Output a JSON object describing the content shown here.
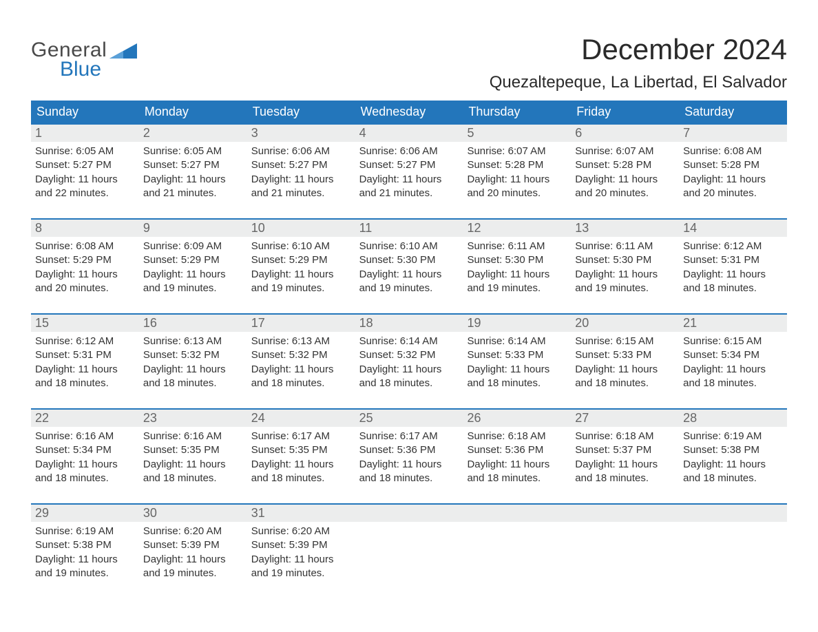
{
  "logo": {
    "text_general": "General",
    "text_blue": "Blue"
  },
  "title": "December 2024",
  "location": "Quezaltepeque, La Libertad, El Salvador",
  "colors": {
    "header_bg": "#2376bb",
    "header_text": "#ffffff",
    "day_bar_bg": "#eceded",
    "week_border": "#2376bb",
    "text": "#333333",
    "logo_blue": "#2376bb",
    "logo_gray": "#4a4a4a",
    "background": "#ffffff"
  },
  "fonts": {
    "title_size": 42,
    "location_size": 24,
    "header_size": 18,
    "daynum_size": 18,
    "body_size": 15
  },
  "day_names": [
    "Sunday",
    "Monday",
    "Tuesday",
    "Wednesday",
    "Thursday",
    "Friday",
    "Saturday"
  ],
  "weeks": [
    [
      {
        "n": "1",
        "sunrise": "Sunrise: 6:05 AM",
        "sunset": "Sunset: 5:27 PM",
        "d1": "Daylight: 11 hours",
        "d2": "and 22 minutes."
      },
      {
        "n": "2",
        "sunrise": "Sunrise: 6:05 AM",
        "sunset": "Sunset: 5:27 PM",
        "d1": "Daylight: 11 hours",
        "d2": "and 21 minutes."
      },
      {
        "n": "3",
        "sunrise": "Sunrise: 6:06 AM",
        "sunset": "Sunset: 5:27 PM",
        "d1": "Daylight: 11 hours",
        "d2": "and 21 minutes."
      },
      {
        "n": "4",
        "sunrise": "Sunrise: 6:06 AM",
        "sunset": "Sunset: 5:27 PM",
        "d1": "Daylight: 11 hours",
        "d2": "and 21 minutes."
      },
      {
        "n": "5",
        "sunrise": "Sunrise: 6:07 AM",
        "sunset": "Sunset: 5:28 PM",
        "d1": "Daylight: 11 hours",
        "d2": "and 20 minutes."
      },
      {
        "n": "6",
        "sunrise": "Sunrise: 6:07 AM",
        "sunset": "Sunset: 5:28 PM",
        "d1": "Daylight: 11 hours",
        "d2": "and 20 minutes."
      },
      {
        "n": "7",
        "sunrise": "Sunrise: 6:08 AM",
        "sunset": "Sunset: 5:28 PM",
        "d1": "Daylight: 11 hours",
        "d2": "and 20 minutes."
      }
    ],
    [
      {
        "n": "8",
        "sunrise": "Sunrise: 6:08 AM",
        "sunset": "Sunset: 5:29 PM",
        "d1": "Daylight: 11 hours",
        "d2": "and 20 minutes."
      },
      {
        "n": "9",
        "sunrise": "Sunrise: 6:09 AM",
        "sunset": "Sunset: 5:29 PM",
        "d1": "Daylight: 11 hours",
        "d2": "and 19 minutes."
      },
      {
        "n": "10",
        "sunrise": "Sunrise: 6:10 AM",
        "sunset": "Sunset: 5:29 PM",
        "d1": "Daylight: 11 hours",
        "d2": "and 19 minutes."
      },
      {
        "n": "11",
        "sunrise": "Sunrise: 6:10 AM",
        "sunset": "Sunset: 5:30 PM",
        "d1": "Daylight: 11 hours",
        "d2": "and 19 minutes."
      },
      {
        "n": "12",
        "sunrise": "Sunrise: 6:11 AM",
        "sunset": "Sunset: 5:30 PM",
        "d1": "Daylight: 11 hours",
        "d2": "and 19 minutes."
      },
      {
        "n": "13",
        "sunrise": "Sunrise: 6:11 AM",
        "sunset": "Sunset: 5:30 PM",
        "d1": "Daylight: 11 hours",
        "d2": "and 19 minutes."
      },
      {
        "n": "14",
        "sunrise": "Sunrise: 6:12 AM",
        "sunset": "Sunset: 5:31 PM",
        "d1": "Daylight: 11 hours",
        "d2": "and 18 minutes."
      }
    ],
    [
      {
        "n": "15",
        "sunrise": "Sunrise: 6:12 AM",
        "sunset": "Sunset: 5:31 PM",
        "d1": "Daylight: 11 hours",
        "d2": "and 18 minutes."
      },
      {
        "n": "16",
        "sunrise": "Sunrise: 6:13 AM",
        "sunset": "Sunset: 5:32 PM",
        "d1": "Daylight: 11 hours",
        "d2": "and 18 minutes."
      },
      {
        "n": "17",
        "sunrise": "Sunrise: 6:13 AM",
        "sunset": "Sunset: 5:32 PM",
        "d1": "Daylight: 11 hours",
        "d2": "and 18 minutes."
      },
      {
        "n": "18",
        "sunrise": "Sunrise: 6:14 AM",
        "sunset": "Sunset: 5:32 PM",
        "d1": "Daylight: 11 hours",
        "d2": "and 18 minutes."
      },
      {
        "n": "19",
        "sunrise": "Sunrise: 6:14 AM",
        "sunset": "Sunset: 5:33 PM",
        "d1": "Daylight: 11 hours",
        "d2": "and 18 minutes."
      },
      {
        "n": "20",
        "sunrise": "Sunrise: 6:15 AM",
        "sunset": "Sunset: 5:33 PM",
        "d1": "Daylight: 11 hours",
        "d2": "and 18 minutes."
      },
      {
        "n": "21",
        "sunrise": "Sunrise: 6:15 AM",
        "sunset": "Sunset: 5:34 PM",
        "d1": "Daylight: 11 hours",
        "d2": "and 18 minutes."
      }
    ],
    [
      {
        "n": "22",
        "sunrise": "Sunrise: 6:16 AM",
        "sunset": "Sunset: 5:34 PM",
        "d1": "Daylight: 11 hours",
        "d2": "and 18 minutes."
      },
      {
        "n": "23",
        "sunrise": "Sunrise: 6:16 AM",
        "sunset": "Sunset: 5:35 PM",
        "d1": "Daylight: 11 hours",
        "d2": "and 18 minutes."
      },
      {
        "n": "24",
        "sunrise": "Sunrise: 6:17 AM",
        "sunset": "Sunset: 5:35 PM",
        "d1": "Daylight: 11 hours",
        "d2": "and 18 minutes."
      },
      {
        "n": "25",
        "sunrise": "Sunrise: 6:17 AM",
        "sunset": "Sunset: 5:36 PM",
        "d1": "Daylight: 11 hours",
        "d2": "and 18 minutes."
      },
      {
        "n": "26",
        "sunrise": "Sunrise: 6:18 AM",
        "sunset": "Sunset: 5:36 PM",
        "d1": "Daylight: 11 hours",
        "d2": "and 18 minutes."
      },
      {
        "n": "27",
        "sunrise": "Sunrise: 6:18 AM",
        "sunset": "Sunset: 5:37 PM",
        "d1": "Daylight: 11 hours",
        "d2": "and 18 minutes."
      },
      {
        "n": "28",
        "sunrise": "Sunrise: 6:19 AM",
        "sunset": "Sunset: 5:38 PM",
        "d1": "Daylight: 11 hours",
        "d2": "and 18 minutes."
      }
    ],
    [
      {
        "n": "29",
        "sunrise": "Sunrise: 6:19 AM",
        "sunset": "Sunset: 5:38 PM",
        "d1": "Daylight: 11 hours",
        "d2": "and 19 minutes."
      },
      {
        "n": "30",
        "sunrise": "Sunrise: 6:20 AM",
        "sunset": "Sunset: 5:39 PM",
        "d1": "Daylight: 11 hours",
        "d2": "and 19 minutes."
      },
      {
        "n": "31",
        "sunrise": "Sunrise: 6:20 AM",
        "sunset": "Sunset: 5:39 PM",
        "d1": "Daylight: 11 hours",
        "d2": "and 19 minutes."
      },
      null,
      null,
      null,
      null
    ]
  ]
}
